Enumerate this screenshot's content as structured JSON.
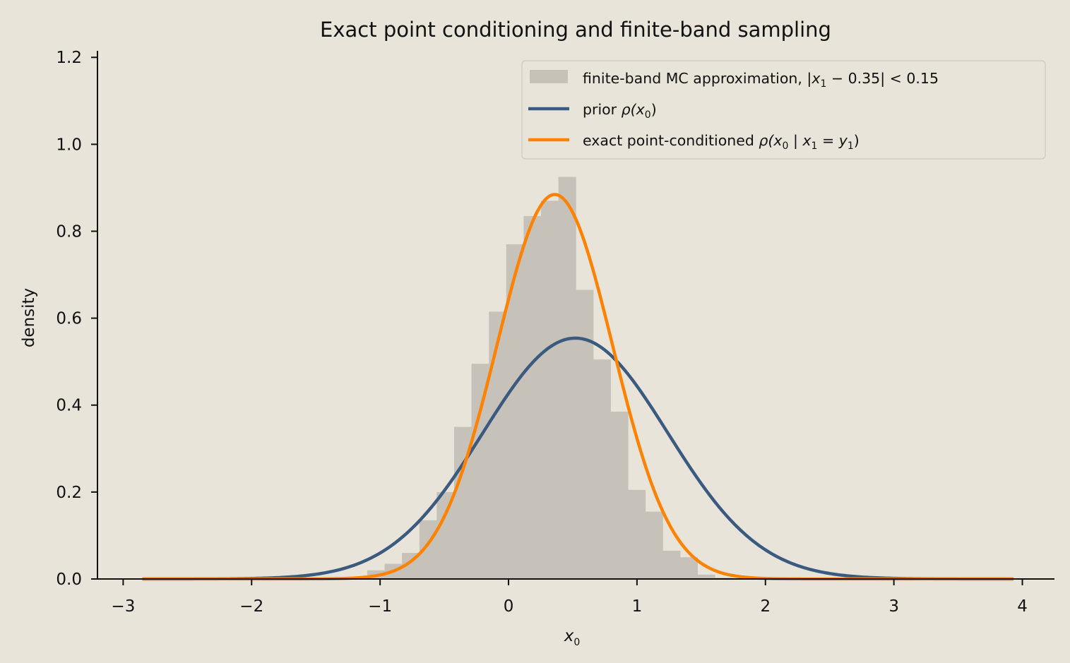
{
  "chart_data": {
    "type": "area",
    "title": "Exact point conditioning and finite-band sampling",
    "xlabel": "x",
    "xlabel_sub": "0",
    "ylabel": "density",
    "xlim": [
      -3.2,
      4.25
    ],
    "ylim": [
      0,
      1.215
    ],
    "xticks": [
      -3,
      -2,
      -1,
      0,
      1,
      2,
      3,
      4
    ],
    "xtick_labels": [
      "−3",
      "−2",
      "−1",
      "0",
      "1",
      "2",
      "3",
      "4"
    ],
    "yticks": [
      0.0,
      0.2,
      0.4,
      0.6,
      0.8,
      1.0,
      1.2
    ],
    "ytick_labels": [
      "0.0",
      "0.2",
      "0.4",
      "0.6",
      "0.8",
      "1.0",
      "1.2"
    ],
    "grid": false,
    "legend_position": "top-right",
    "histogram": {
      "name": "finite-band MC approximation, |x₁ − 0.35| < 0.15",
      "color": "#c6c2ba",
      "bin_edges": [
        -1.1,
        -0.9647,
        -0.8294,
        -0.6941,
        -0.5588,
        -0.4235,
        -0.2882,
        -0.1529,
        -0.0176,
        0.1177,
        0.253,
        0.3883,
        0.5236,
        0.6589,
        0.7942,
        0.9295,
        1.0648,
        1.2001,
        1.3354,
        1.4707,
        1.606,
        1.7413
      ],
      "values": [
        0.02,
        0.035,
        0.06,
        0.135,
        0.2,
        0.35,
        0.495,
        0.615,
        0.77,
        0.835,
        0.87,
        0.925,
        0.665,
        0.505,
        0.385,
        0.205,
        0.155,
        0.065,
        0.05,
        0.01,
        0.003
      ]
    },
    "series": [
      {
        "name": "prior ρ(x₀)",
        "color": "#3b5a80",
        "distribution": "normal",
        "mean": 0.52,
        "std": 0.72,
        "x_range": [
          -2.85,
          3.93
        ]
      },
      {
        "name": "exact point-conditioned ρ(x₀ | x₁ = y₁)",
        "color": "#ff8200",
        "distribution": "normal",
        "mean": 0.36,
        "std": 0.451,
        "x_range": [
          -2.85,
          3.93
        ]
      }
    ],
    "legend": {
      "hist_label": "finite-band MC approximation, |",
      "hist_var": "x",
      "hist_sub": "1",
      "hist_rest": " − 0.35| < 0.15",
      "prior_label": "prior ",
      "prior_rho": "ρ(",
      "prior_var": "x",
      "prior_sub": "0",
      "prior_close": ")",
      "exact_label": "exact point-conditioned ",
      "exact_rho": "ρ(",
      "exact_var0": "x",
      "exact_sub0": "0",
      "exact_bar": " | ",
      "exact_var1": "x",
      "exact_sub1": "1",
      "exact_eq": " = ",
      "exact_var2": "y",
      "exact_sub2": "1",
      "exact_close": ")"
    }
  }
}
